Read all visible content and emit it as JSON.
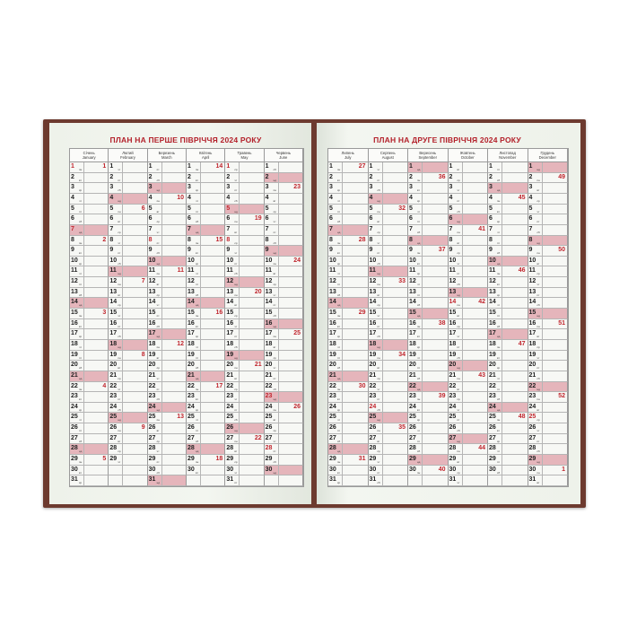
{
  "pages": [
    {
      "title": "ПЛАН НА ПЕРШЕ ПІВРІЧЧЯ 2024 РОКУ",
      "months": [
        {
          "uk": "Січень",
          "en": "January",
          "days": 31,
          "first_weekday": 0,
          "holidays": [
            1,
            7
          ],
          "weeks": {
            "1": 1,
            "8": 2,
            "15": 3,
            "22": 4,
            "29": 5
          }
        },
        {
          "uk": "Лютий",
          "en": "February",
          "days": 29,
          "first_weekday": 3,
          "holidays": [],
          "weeks": {
            "5": 6,
            "12": 7,
            "19": 8,
            "26": 9
          }
        },
        {
          "uk": "Березень",
          "en": "March",
          "days": 31,
          "first_weekday": 4,
          "holidays": [
            8
          ],
          "weeks": {
            "4": 10,
            "11": 11,
            "18": 12,
            "25": 13
          }
        },
        {
          "uk": "Квітень",
          "en": "April",
          "days": 30,
          "first_weekday": 0,
          "holidays": [],
          "weeks": {
            "1": 14,
            "8": 15,
            "15": 16,
            "22": 17,
            "29": 18
          }
        },
        {
          "uk": "Травень",
          "en": "May",
          "days": 31,
          "first_weekday": 2,
          "holidays": [
            1,
            5,
            8
          ],
          "weeks": {
            "6": 19,
            "13": 20,
            "20": 21,
            "27": 22
          }
        },
        {
          "uk": "Червень",
          "en": "June",
          "days": 30,
          "first_weekday": 5,
          "holidays": [
            23,
            28
          ],
          "weeks": {
            "3": 23,
            "10": 24,
            "17": 25,
            "24": 26
          }
        }
      ]
    },
    {
      "title": "ПЛАН НА ДРУГЕ ПІВРІЧЧЯ 2024 РОКУ",
      "months": [
        {
          "uk": "Липень",
          "en": "July",
          "days": 31,
          "first_weekday": 0,
          "holidays": [],
          "weeks": {
            "1": 27,
            "8": 28,
            "15": 29,
            "22": 30,
            "29": 31
          }
        },
        {
          "uk": "Серпень",
          "en": "August",
          "days": 31,
          "first_weekday": 3,
          "holidays": [
            24
          ],
          "weeks": {
            "5": 32,
            "12": 33,
            "19": 34,
            "26": 35
          }
        },
        {
          "uk": "Вересень",
          "en": "September",
          "days": 30,
          "first_weekday": 6,
          "holidays": [],
          "weeks": {
            "2": 36,
            "9": 37,
            "16": 38,
            "23": 39,
            "30": 40
          }
        },
        {
          "uk": "Жовтень",
          "en": "October",
          "days": 31,
          "first_weekday": 1,
          "holidays": [
            14
          ],
          "weeks": {
            "7": 41,
            "14": 42,
            "21": 43,
            "28": 44
          }
        },
        {
          "uk": "Листопад",
          "en": "November",
          "days": 30,
          "first_weekday": 4,
          "holidays": [],
          "weeks": {
            "4": 45,
            "11": 46,
            "18": 47,
            "25": 48
          }
        },
        {
          "uk": "Грудень",
          "en": "December",
          "days": 31,
          "first_weekday": 6,
          "holidays": [
            25
          ],
          "weeks": {
            "2": 49,
            "9": 50,
            "16": 51,
            "23": 52,
            "30": 1
          }
        }
      ]
    }
  ],
  "weekday_labels": [
    "пн",
    "вт",
    "ср",
    "чт",
    "пт",
    "сб",
    "нд"
  ],
  "colors": {
    "cover": "#6d3a2f",
    "weekend_fill": "#e5b5bb",
    "accent_red": "#c0262e"
  }
}
